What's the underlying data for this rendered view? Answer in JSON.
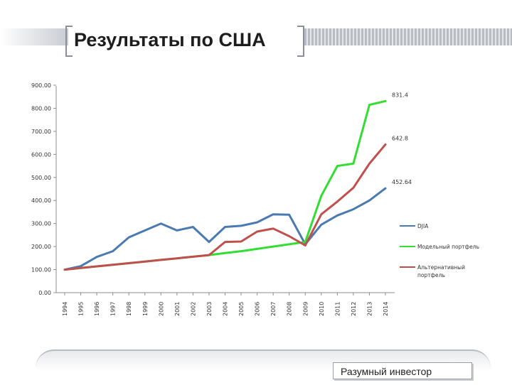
{
  "slide": {
    "title": "Результаты по США",
    "footer": "Разумный инвестор"
  },
  "colors": {
    "djia": "#4a7ab0",
    "model": "#33dd33",
    "alt": "#c0504d"
  },
  "chart_data": {
    "type": "line",
    "categories": [
      "1994",
      "1995",
      "1996",
      "1997",
      "1998",
      "1999",
      "2000",
      "2001",
      "2002",
      "2003",
      "2004",
      "2005",
      "2006",
      "2007",
      "2008",
      "2009",
      "2010",
      "2011",
      "2012",
      "2013",
      "2014"
    ],
    "y_ticks": [
      "0.00",
      "100.00",
      "200.00",
      "300.00",
      "400.00",
      "500.00",
      "600.00",
      "700.00",
      "800.00",
      "900.00"
    ],
    "ylim": [
      0,
      900
    ],
    "grid": false,
    "legend_position": "right",
    "series": [
      {
        "name": "DJIA",
        "color": "#4a7ab0",
        "values": [
          100,
          115,
          155,
          180,
          240,
          270,
          300,
          270,
          285,
          220,
          285,
          290,
          305,
          340,
          338,
          210,
          295,
          335,
          362,
          400,
          452.64
        ],
        "end_label": "452.64"
      },
      {
        "name": "Модельный портфель",
        "color": "#33dd33",
        "values": [
          100,
          107,
          114,
          121,
          128,
          135,
          142,
          149,
          156,
          163,
          172,
          180,
          190,
          200,
          210,
          220,
          420,
          550,
          560,
          815,
          831.4
        ],
        "end_label": "831.4"
      },
      {
        "name": "Альтернативный портфель",
        "color": "#c0504d",
        "values": [
          100,
          107,
          114,
          121,
          128,
          135,
          142,
          149,
          156,
          163,
          220,
          222,
          265,
          278,
          245,
          205,
          340,
          395,
          455,
          560,
          642.8
        ],
        "end_label": "642.8"
      }
    ]
  }
}
